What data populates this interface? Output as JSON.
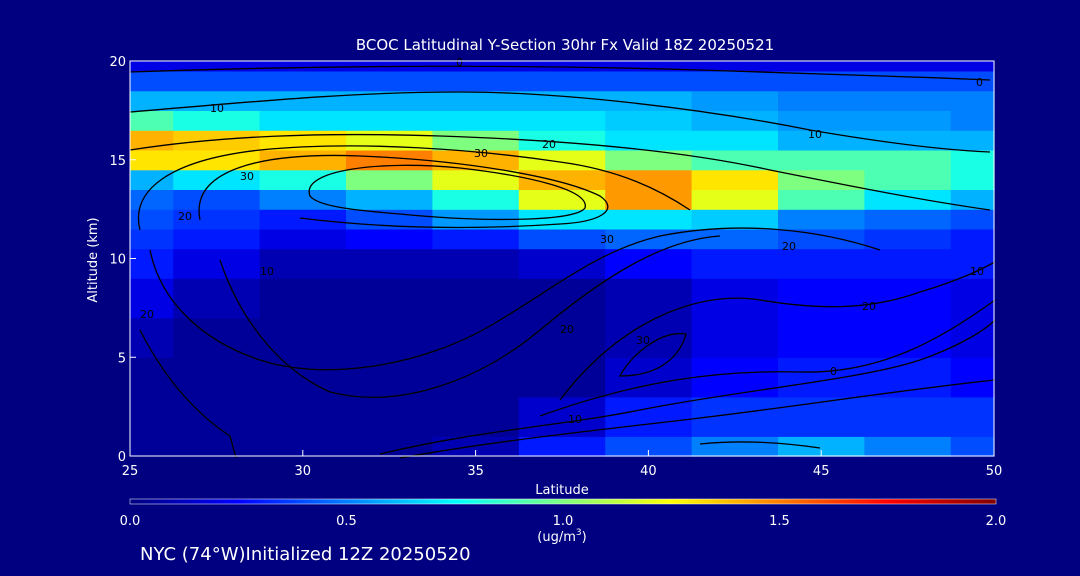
{
  "chart_data": {
    "type": "heatmap",
    "title": "BCOC Latitudinal Y-Section 30hr  Fx Valid 18Z 20250521",
    "xlabel": "Latitude",
    "ylabel": "Altitude (km)",
    "xlim": [
      25,
      50
    ],
    "ylim": [
      0,
      20
    ],
    "xticks": [
      "25",
      "30",
      "35",
      "40",
      "45",
      "50"
    ],
    "yticks": [
      "0",
      "5",
      "10",
      "15",
      "20"
    ],
    "colorbar": {
      "range": [
        0.0,
        2.0
      ],
      "ticks": [
        "0.0",
        "0.5",
        "1.0",
        "1.5",
        "2.0"
      ],
      "label": "(ug/m",
      "label_sup": "3",
      "label_end": ")",
      "colors": [
        "#00007f",
        "#0000ff",
        "#007fff",
        "#00ffff",
        "#7fff7f",
        "#ffff00",
        "#ff7f00",
        "#ff0000",
        "#7f0000"
      ]
    },
    "field": {
      "lat": [
        25,
        27.5,
        30,
        32.5,
        35,
        37.5,
        40,
        42.5,
        45,
        47.5,
        50
      ],
      "alt": [
        0,
        2,
        4,
        6,
        8,
        10,
        11,
        12,
        13,
        14,
        15,
        16,
        17,
        18,
        19,
        20
      ],
      "values": [
        [
          0.05,
          0.05,
          0.05,
          0.05,
          0.1,
          0.3,
          0.4,
          0.5,
          0.6,
          0.5,
          0.4
        ],
        [
          0.05,
          0.05,
          0.05,
          0.05,
          0.05,
          0.15,
          0.3,
          0.35,
          0.35,
          0.35,
          0.35
        ],
        [
          0.05,
          0.05,
          0.05,
          0.05,
          0.05,
          0.05,
          0.15,
          0.25,
          0.3,
          0.3,
          0.25
        ],
        [
          0.1,
          0.05,
          0.05,
          0.05,
          0.05,
          0.05,
          0.1,
          0.2,
          0.25,
          0.25,
          0.2
        ],
        [
          0.2,
          0.1,
          0.05,
          0.05,
          0.05,
          0.05,
          0.1,
          0.2,
          0.25,
          0.25,
          0.2
        ],
        [
          0.3,
          0.2,
          0.1,
          0.1,
          0.1,
          0.15,
          0.25,
          0.3,
          0.3,
          0.3,
          0.3
        ],
        [
          0.35,
          0.3,
          0.2,
          0.25,
          0.3,
          0.4,
          0.45,
          0.45,
          0.4,
          0.35,
          0.3
        ],
        [
          0.4,
          0.35,
          0.3,
          0.4,
          0.55,
          0.7,
          0.7,
          0.65,
          0.5,
          0.45,
          0.4
        ],
        [
          0.45,
          0.4,
          0.5,
          0.6,
          0.8,
          1.2,
          1.45,
          1.2,
          0.9,
          0.7,
          0.6
        ],
        [
          0.6,
          0.7,
          0.8,
          1.0,
          1.2,
          1.4,
          1.45,
          1.3,
          1.0,
          0.9,
          0.8
        ],
        [
          1.3,
          1.3,
          1.4,
          1.5,
          1.4,
          1.2,
          1.0,
          0.9,
          0.9,
          0.9,
          0.8
        ],
        [
          1.4,
          1.35,
          1.3,
          1.2,
          1.0,
          0.8,
          0.7,
          0.7,
          0.6,
          0.6,
          0.6
        ],
        [
          0.9,
          0.8,
          0.7,
          0.7,
          0.7,
          0.7,
          0.65,
          0.6,
          0.55,
          0.55,
          0.5
        ],
        [
          0.6,
          0.6,
          0.6,
          0.6,
          0.6,
          0.6,
          0.6,
          0.55,
          0.5,
          0.5,
          0.5
        ],
        [
          0.4,
          0.4,
          0.4,
          0.4,
          0.4,
          0.4,
          0.4,
          0.4,
          0.4,
          0.4,
          0.4
        ],
        [
          0.2,
          0.2,
          0.2,
          0.2,
          0.2,
          0.2,
          0.2,
          0.2,
          0.2,
          0.2,
          0.2
        ]
      ]
    },
    "contour_labels": [
      "0",
      "0",
      "10",
      "10",
      "20",
      "30",
      "30",
      "20",
      "30",
      "20",
      "20",
      "20",
      "20",
      "30",
      "10",
      "0",
      "10",
      "10"
    ]
  },
  "footer": "NYC (74°W)Initialized 12Z 20250520"
}
